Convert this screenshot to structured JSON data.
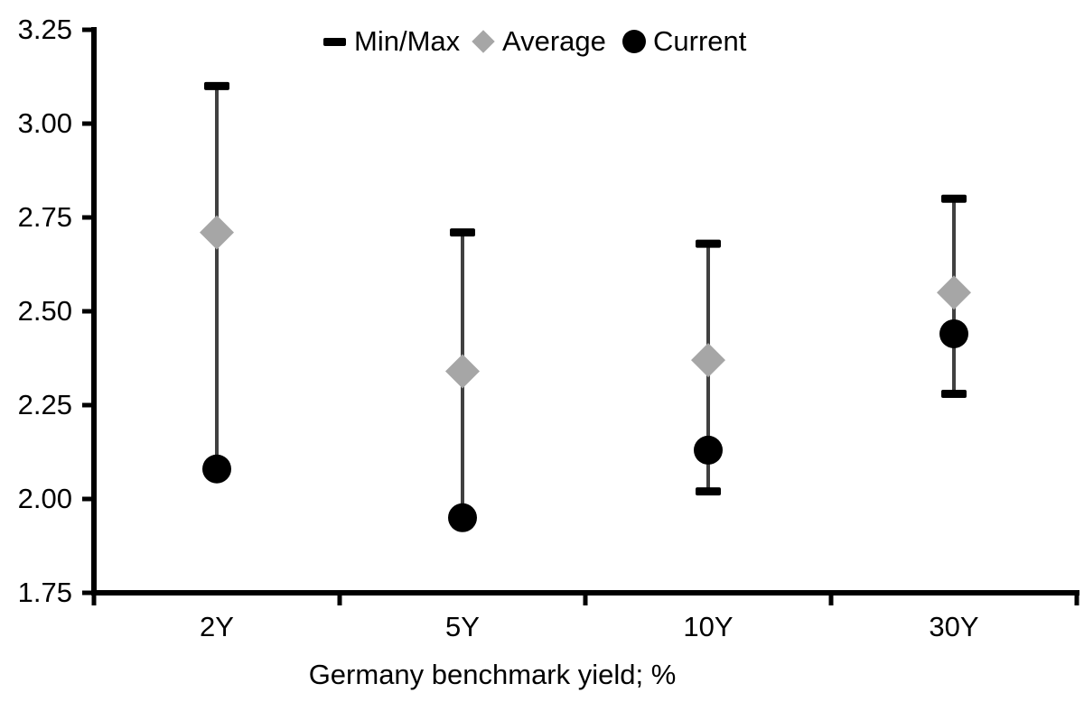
{
  "chart_data": {
    "type": "scatter",
    "subtype": "min-max-range-with-average-and-current-markers",
    "title": "",
    "xlabel": "Germany benchmark yield; %",
    "ylabel": "",
    "categories": [
      "2Y",
      "5Y",
      "10Y",
      "30Y"
    ],
    "series": [
      {
        "name": "Min/Max",
        "marker": "black-dash-whisker",
        "max": [
          3.1,
          2.71,
          2.68,
          2.8
        ],
        "min": [
          2.08,
          1.95,
          2.02,
          2.28
        ]
      },
      {
        "name": "Average",
        "marker": "gray-diamond",
        "values": [
          2.71,
          2.34,
          2.37,
          2.55
        ]
      },
      {
        "name": "Current",
        "marker": "black-circle",
        "values": [
          2.08,
          1.95,
          2.13,
          2.44
        ]
      }
    ],
    "ylim": [
      1.75,
      3.25
    ],
    "y_ticks": [
      3.25,
      3.0,
      2.75,
      2.5,
      2.25,
      2.0,
      1.75
    ],
    "y_tick_decimals": 2,
    "grid": false,
    "legend_position": "top-center",
    "colors": {
      "axis": "#000000",
      "whisker_line": "#404040",
      "cap": "#000000",
      "average_diamond": "#a6a6a6",
      "current_circle": "#000000",
      "text": "#000000",
      "background": "#ffffff"
    }
  }
}
